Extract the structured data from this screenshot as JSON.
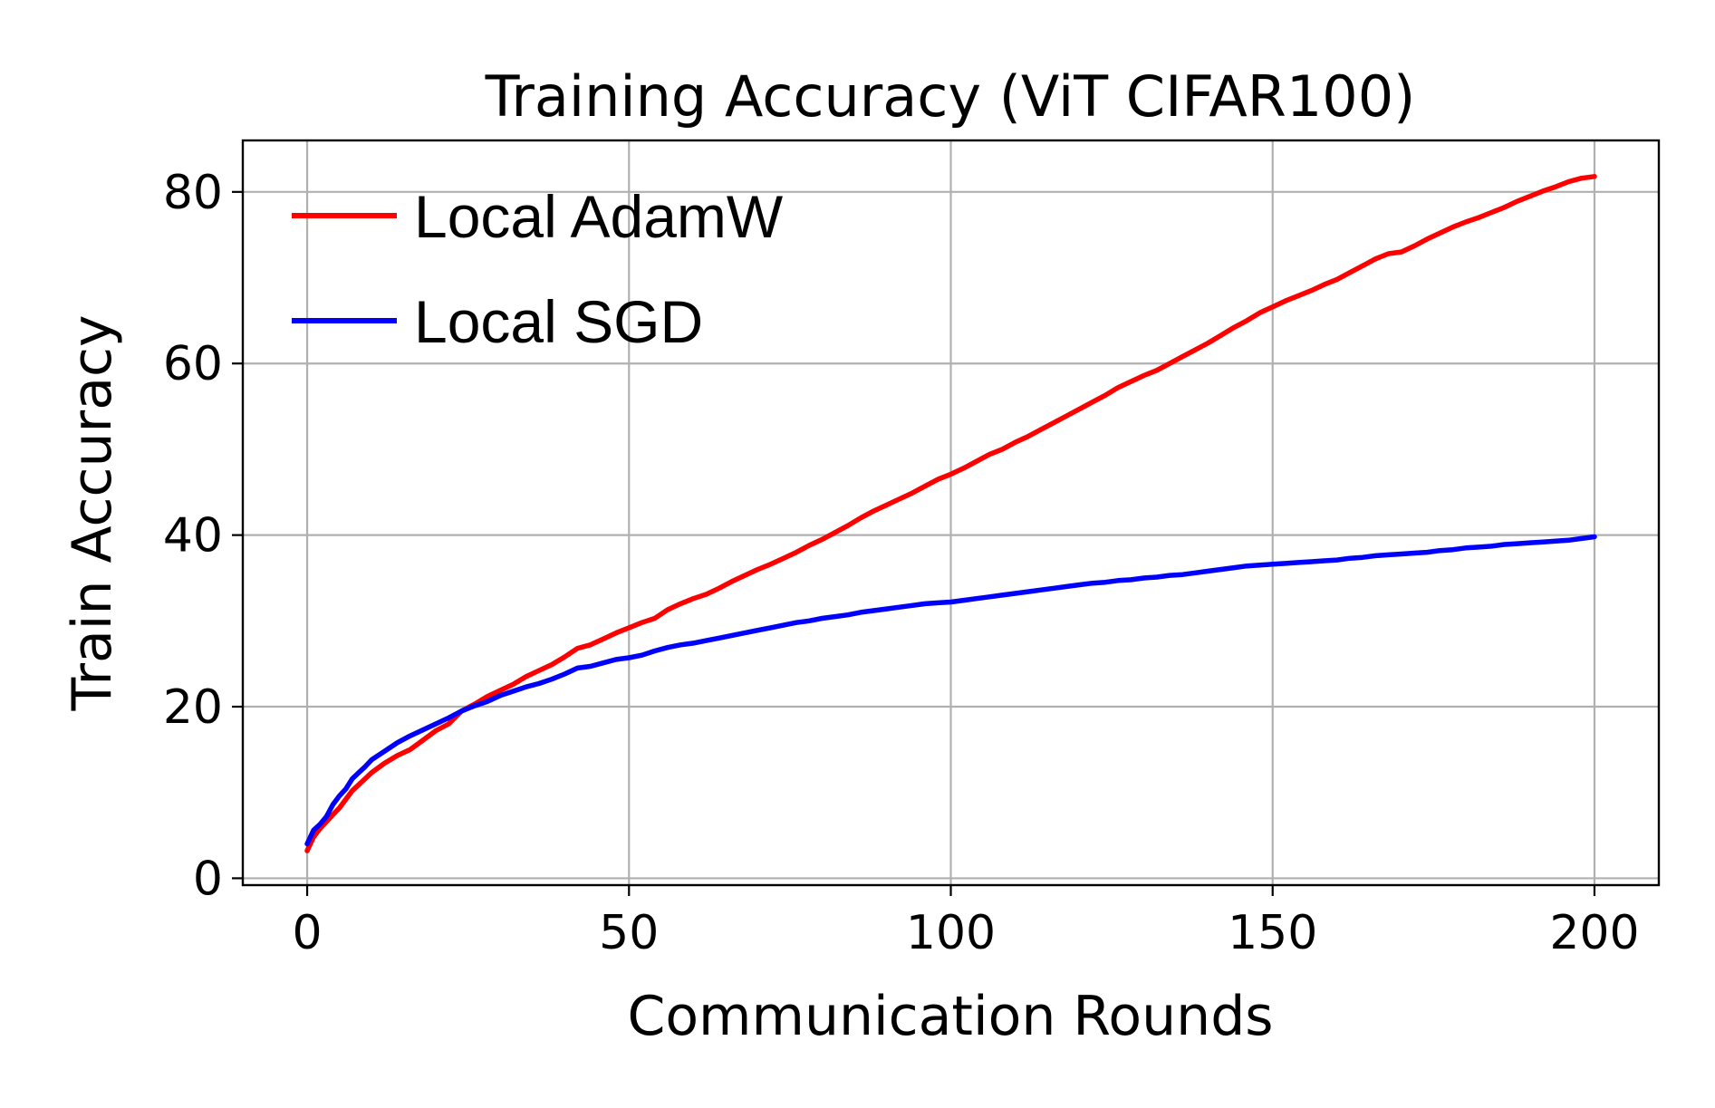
{
  "chart_data": {
    "type": "line",
    "title": "Training Accuracy (ViT CIFAR100)",
    "xlabel": "Communication Rounds",
    "ylabel": "Train Accuracy",
    "xlim": [
      -10,
      210
    ],
    "ylim": [
      -0.8,
      86
    ],
    "xticks": [
      0,
      50,
      100,
      150,
      200
    ],
    "yticks": [
      0,
      20,
      40,
      60,
      80
    ],
    "grid": true,
    "legend_position": "top-left",
    "series": [
      {
        "name": "Local AdamW",
        "color": "#ff0000",
        "points": [
          [
            0,
            3.2
          ],
          [
            1,
            4.8
          ],
          [
            2,
            5.8
          ],
          [
            3,
            6.6
          ],
          [
            4,
            7.4
          ],
          [
            5,
            8.2
          ],
          [
            6,
            9.2
          ],
          [
            7,
            10.2
          ],
          [
            8,
            10.9
          ],
          [
            9,
            11.6
          ],
          [
            10,
            12.3
          ],
          [
            12,
            13.4
          ],
          [
            14,
            14.3
          ],
          [
            16,
            15.0
          ],
          [
            18,
            16.1
          ],
          [
            20,
            17.2
          ],
          [
            22,
            18.0
          ],
          [
            24,
            19.5
          ],
          [
            26,
            20.3
          ],
          [
            28,
            21.2
          ],
          [
            30,
            21.9
          ],
          [
            32,
            22.6
          ],
          [
            34,
            23.5
          ],
          [
            36,
            24.2
          ],
          [
            38,
            24.9
          ],
          [
            40,
            25.8
          ],
          [
            42,
            26.8
          ],
          [
            44,
            27.2
          ],
          [
            46,
            27.9
          ],
          [
            48,
            28.6
          ],
          [
            50,
            29.2
          ],
          [
            52,
            29.8
          ],
          [
            54,
            30.3
          ],
          [
            56,
            31.3
          ],
          [
            58,
            32.0
          ],
          [
            60,
            32.6
          ],
          [
            62,
            33.1
          ],
          [
            64,
            33.8
          ],
          [
            66,
            34.6
          ],
          [
            68,
            35.3
          ],
          [
            70,
            36.0
          ],
          [
            72,
            36.6
          ],
          [
            74,
            37.3
          ],
          [
            76,
            38.0
          ],
          [
            78,
            38.8
          ],
          [
            80,
            39.5
          ],
          [
            82,
            40.3
          ],
          [
            84,
            41.1
          ],
          [
            86,
            42.0
          ],
          [
            88,
            42.8
          ],
          [
            90,
            43.5
          ],
          [
            92,
            44.2
          ],
          [
            94,
            44.9
          ],
          [
            96,
            45.7
          ],
          [
            98,
            46.5
          ],
          [
            100,
            47.1
          ],
          [
            102,
            47.8
          ],
          [
            104,
            48.6
          ],
          [
            106,
            49.4
          ],
          [
            108,
            50.0
          ],
          [
            110,
            50.8
          ],
          [
            112,
            51.5
          ],
          [
            114,
            52.3
          ],
          [
            116,
            53.1
          ],
          [
            118,
            53.9
          ],
          [
            120,
            54.7
          ],
          [
            122,
            55.5
          ],
          [
            124,
            56.3
          ],
          [
            126,
            57.2
          ],
          [
            128,
            57.9
          ],
          [
            130,
            58.6
          ],
          [
            132,
            59.2
          ],
          [
            134,
            60.0
          ],
          [
            136,
            60.8
          ],
          [
            138,
            61.6
          ],
          [
            140,
            62.4
          ],
          [
            142,
            63.3
          ],
          [
            144,
            64.2
          ],
          [
            146,
            65.0
          ],
          [
            148,
            65.9
          ],
          [
            150,
            66.6
          ],
          [
            152,
            67.3
          ],
          [
            154,
            67.9
          ],
          [
            156,
            68.5
          ],
          [
            158,
            69.2
          ],
          [
            160,
            69.8
          ],
          [
            162,
            70.6
          ],
          [
            164,
            71.4
          ],
          [
            166,
            72.2
          ],
          [
            168,
            72.8
          ],
          [
            170,
            73.0
          ],
          [
            172,
            73.7
          ],
          [
            174,
            74.5
          ],
          [
            176,
            75.2
          ],
          [
            178,
            75.9
          ],
          [
            180,
            76.5
          ],
          [
            182,
            77.0
          ],
          [
            184,
            77.6
          ],
          [
            186,
            78.2
          ],
          [
            188,
            78.9
          ],
          [
            190,
            79.5
          ],
          [
            192,
            80.1
          ],
          [
            194,
            80.6
          ],
          [
            196,
            81.2
          ],
          [
            198,
            81.6
          ],
          [
            200,
            81.8
          ]
        ]
      },
      {
        "name": "Local SGD",
        "color": "#0000ff",
        "points": [
          [
            0,
            4.0
          ],
          [
            1,
            5.6
          ],
          [
            2,
            6.3
          ],
          [
            3,
            7.2
          ],
          [
            4,
            8.6
          ],
          [
            5,
            9.6
          ],
          [
            6,
            10.4
          ],
          [
            7,
            11.6
          ],
          [
            8,
            12.3
          ],
          [
            9,
            13.0
          ],
          [
            10,
            13.8
          ],
          [
            12,
            14.8
          ],
          [
            14,
            15.8
          ],
          [
            16,
            16.6
          ],
          [
            18,
            17.3
          ],
          [
            20,
            18.0
          ],
          [
            22,
            18.7
          ],
          [
            24,
            19.5
          ],
          [
            26,
            20.1
          ],
          [
            28,
            20.6
          ],
          [
            30,
            21.3
          ],
          [
            32,
            21.8
          ],
          [
            34,
            22.3
          ],
          [
            36,
            22.7
          ],
          [
            38,
            23.2
          ],
          [
            40,
            23.8
          ],
          [
            42,
            24.5
          ],
          [
            44,
            24.7
          ],
          [
            46,
            25.1
          ],
          [
            48,
            25.5
          ],
          [
            50,
            25.7
          ],
          [
            52,
            26.0
          ],
          [
            54,
            26.5
          ],
          [
            56,
            26.9
          ],
          [
            58,
            27.2
          ],
          [
            60,
            27.4
          ],
          [
            62,
            27.7
          ],
          [
            64,
            28.0
          ],
          [
            66,
            28.3
          ],
          [
            68,
            28.6
          ],
          [
            70,
            28.9
          ],
          [
            72,
            29.2
          ],
          [
            74,
            29.5
          ],
          [
            76,
            29.8
          ],
          [
            78,
            30.0
          ],
          [
            80,
            30.3
          ],
          [
            82,
            30.5
          ],
          [
            84,
            30.7
          ],
          [
            86,
            31.0
          ],
          [
            88,
            31.2
          ],
          [
            90,
            31.4
          ],
          [
            92,
            31.6
          ],
          [
            94,
            31.8
          ],
          [
            96,
            32.0
          ],
          [
            98,
            32.1
          ],
          [
            100,
            32.2
          ],
          [
            102,
            32.4
          ],
          [
            104,
            32.6
          ],
          [
            106,
            32.8
          ],
          [
            108,
            33.0
          ],
          [
            110,
            33.2
          ],
          [
            112,
            33.4
          ],
          [
            114,
            33.6
          ],
          [
            116,
            33.8
          ],
          [
            118,
            34.0
          ],
          [
            120,
            34.2
          ],
          [
            122,
            34.4
          ],
          [
            124,
            34.5
          ],
          [
            126,
            34.7
          ],
          [
            128,
            34.8
          ],
          [
            130,
            35.0
          ],
          [
            132,
            35.1
          ],
          [
            134,
            35.3
          ],
          [
            136,
            35.4
          ],
          [
            138,
            35.6
          ],
          [
            140,
            35.8
          ],
          [
            142,
            36.0
          ],
          [
            144,
            36.2
          ],
          [
            146,
            36.4
          ],
          [
            148,
            36.5
          ],
          [
            150,
            36.6
          ],
          [
            152,
            36.7
          ],
          [
            154,
            36.8
          ],
          [
            156,
            36.9
          ],
          [
            158,
            37.0
          ],
          [
            160,
            37.1
          ],
          [
            162,
            37.3
          ],
          [
            164,
            37.4
          ],
          [
            166,
            37.6
          ],
          [
            168,
            37.7
          ],
          [
            170,
            37.8
          ],
          [
            172,
            37.9
          ],
          [
            174,
            38.0
          ],
          [
            176,
            38.2
          ],
          [
            178,
            38.3
          ],
          [
            180,
            38.5
          ],
          [
            182,
            38.6
          ],
          [
            184,
            38.7
          ],
          [
            186,
            38.9
          ],
          [
            188,
            39.0
          ],
          [
            190,
            39.1
          ],
          [
            192,
            39.2
          ],
          [
            194,
            39.3
          ],
          [
            196,
            39.4
          ],
          [
            198,
            39.6
          ],
          [
            200,
            39.8
          ]
        ]
      }
    ]
  }
}
